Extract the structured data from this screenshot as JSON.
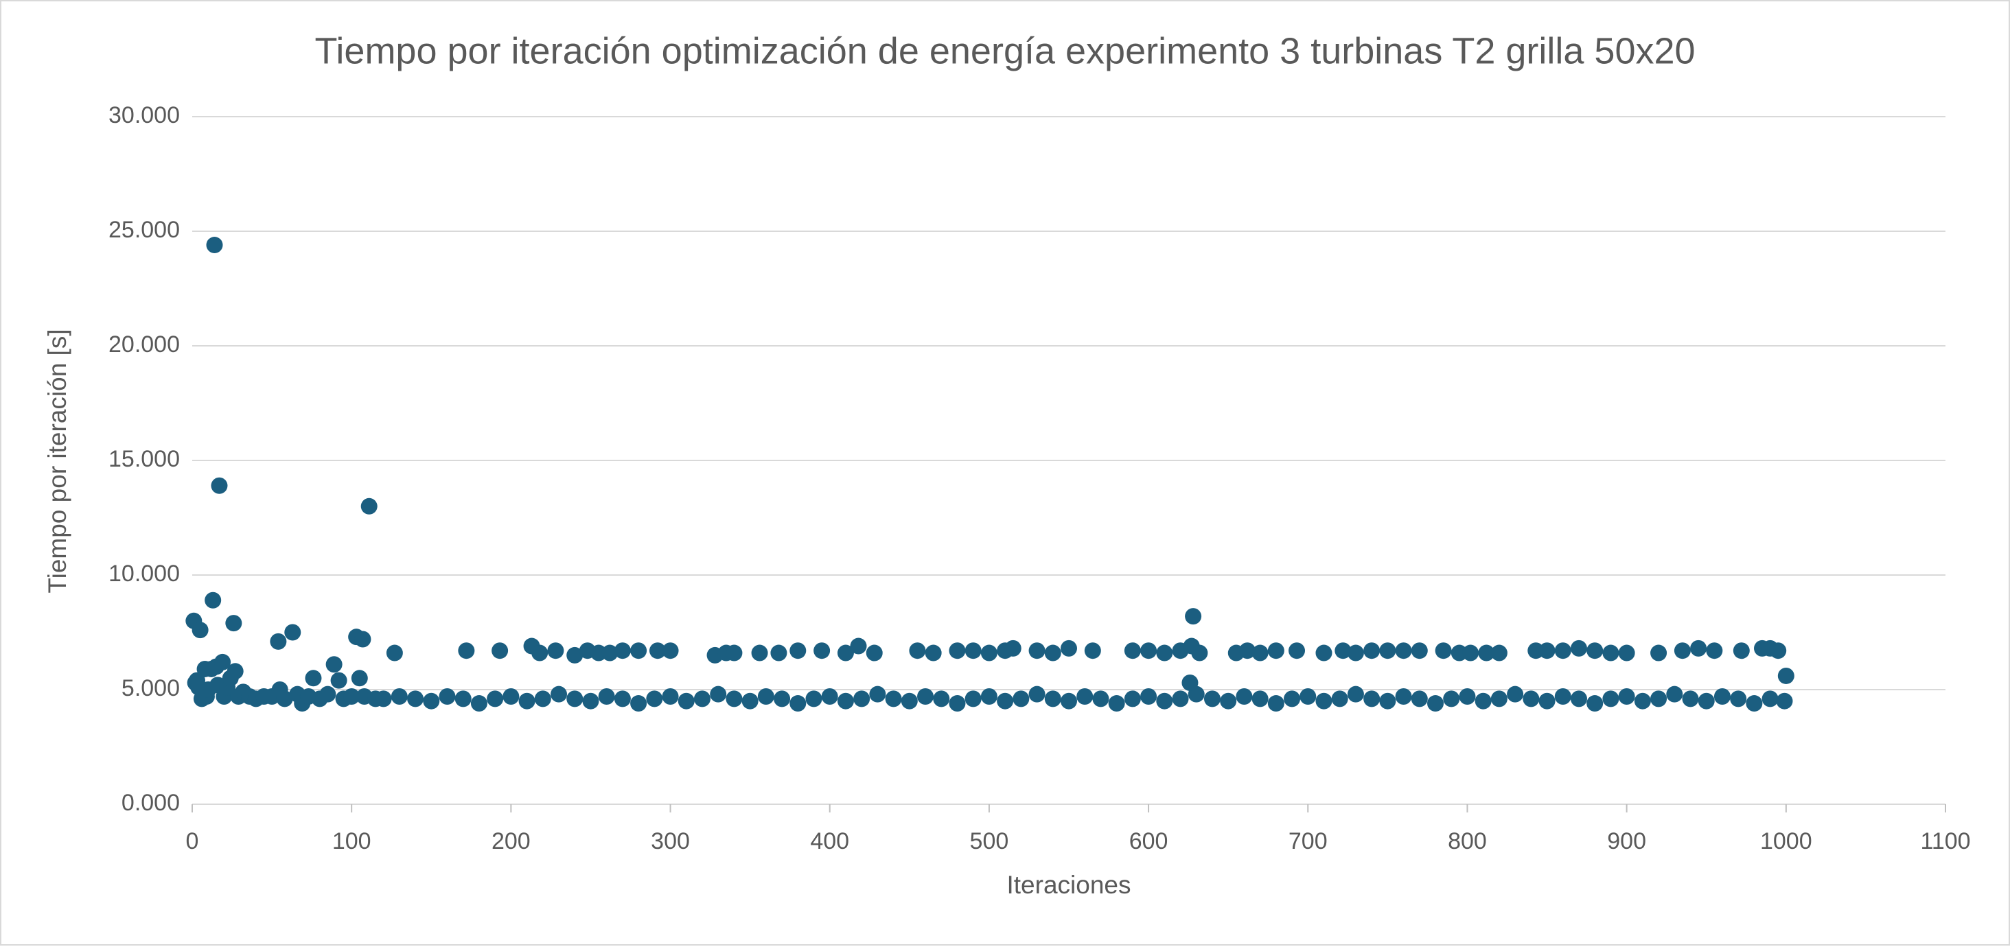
{
  "chart_data": {
    "type": "scatter",
    "title": "Tiempo por iteración optimización de energía experimento 3 turbinas T2 grilla 50x20",
    "x_label": "Iteraciones",
    "y_label": "Tiempo por iteración [s]",
    "color": "#1b5e80",
    "grid": true,
    "xlim": [
      0,
      1100
    ],
    "ylim": [
      0,
      30
    ],
    "xticks": [
      0,
      100,
      200,
      300,
      400,
      500,
      600,
      700,
      800,
      900,
      1000,
      1100
    ],
    "yticks": [
      {
        "value": 0,
        "label": "0.000"
      },
      {
        "value": 5,
        "label": "5.000"
      },
      {
        "value": 10,
        "label": "10.000"
      },
      {
        "value": 15,
        "label": "15.000"
      },
      {
        "value": 20,
        "label": "20.000"
      },
      {
        "value": 25,
        "label": "25.000"
      },
      {
        "value": 30,
        "label": "30.000"
      }
    ],
    "x": [
      1,
      2,
      3,
      4,
      5,
      6,
      8,
      9,
      10,
      12,
      13,
      14,
      15,
      16,
      17,
      19,
      20,
      22,
      24,
      26,
      27,
      29,
      32,
      36,
      40,
      45,
      50,
      54,
      55,
      58,
      63,
      66,
      69,
      73,
      76,
      80,
      85,
      89,
      92,
      95,
      100,
      103,
      105,
      107,
      108,
      111,
      115,
      120,
      127,
      130,
      140,
      150,
      160,
      170,
      180,
      190,
      200,
      210,
      220,
      230,
      240,
      250,
      260,
      270,
      280,
      290,
      300,
      310,
      320,
      330,
      340,
      350,
      360,
      370,
      380,
      390,
      400,
      410,
      420,
      430,
      440,
      450,
      460,
      470,
      480,
      490,
      500,
      510,
      520,
      530,
      540,
      550,
      560,
      570,
      580,
      590,
      600,
      610,
      620,
      630,
      640,
      650,
      660,
      670,
      680,
      690,
      700,
      710,
      720,
      730,
      740,
      750,
      760,
      770,
      780,
      790,
      800,
      810,
      820,
      830,
      840,
      850,
      860,
      870,
      880,
      890,
      900,
      910,
      920,
      930,
      940,
      950,
      960,
      970,
      980,
      990,
      172,
      193,
      213,
      218,
      228,
      240,
      248,
      255,
      262,
      270,
      280,
      292,
      300,
      328,
      335,
      340,
      356,
      368,
      380,
      395,
      410,
      418,
      428,
      455,
      465,
      480,
      490,
      500,
      510,
      515,
      530,
      540,
      550,
      565,
      590,
      600,
      610,
      620,
      627,
      628,
      632,
      655,
      662,
      670,
      680,
      693,
      710,
      722,
      730,
      740,
      750,
      760,
      770,
      785,
      795,
      802,
      812,
      820,
      843,
      850,
      860,
      870,
      880,
      890,
      900,
      920,
      935,
      945,
      955,
      972,
      985,
      990,
      995,
      626,
      999,
      1000
    ],
    "values": [
      8.0,
      5.3,
      5.4,
      5.1,
      7.6,
      4.6,
      5.9,
      4.7,
      5.0,
      5.9,
      8.9,
      24.4,
      6.0,
      5.2,
      13.9,
      6.2,
      4.7,
      5.1,
      5.5,
      7.9,
      5.8,
      4.7,
      4.9,
      4.7,
      4.6,
      4.7,
      4.7,
      7.1,
      5.0,
      4.6,
      7.5,
      4.8,
      4.4,
      4.7,
      5.5,
      4.6,
      4.8,
      6.1,
      5.4,
      4.6,
      4.7,
      7.3,
      5.5,
      7.2,
      4.7,
      13.0,
      4.6,
      4.6,
      6.6,
      4.7,
      4.6,
      4.5,
      4.7,
      4.6,
      4.4,
      4.6,
      4.7,
      4.5,
      4.6,
      4.8,
      4.6,
      4.5,
      4.7,
      4.6,
      4.4,
      4.6,
      4.7,
      4.5,
      4.6,
      4.8,
      4.6,
      4.5,
      4.7,
      4.6,
      4.4,
      4.6,
      4.7,
      4.5,
      4.6,
      4.8,
      4.6,
      4.5,
      4.7,
      4.6,
      4.4,
      4.6,
      4.7,
      4.5,
      4.6,
      4.8,
      4.6,
      4.5,
      4.7,
      4.6,
      4.4,
      4.6,
      4.7,
      4.5,
      4.6,
      4.8,
      4.6,
      4.5,
      4.7,
      4.6,
      4.4,
      4.6,
      4.7,
      4.5,
      4.6,
      4.8,
      4.6,
      4.5,
      4.7,
      4.6,
      4.4,
      4.6,
      4.7,
      4.5,
      4.6,
      4.8,
      4.6,
      4.5,
      4.7,
      4.6,
      4.4,
      4.6,
      4.7,
      4.5,
      4.6,
      4.8,
      4.6,
      4.5,
      4.7,
      4.6,
      4.4,
      4.6,
      6.7,
      6.7,
      6.9,
      6.6,
      6.7,
      6.5,
      6.7,
      6.6,
      6.6,
      6.7,
      6.7,
      6.7,
      6.7,
      6.5,
      6.6,
      6.6,
      6.6,
      6.6,
      6.7,
      6.7,
      6.6,
      6.9,
      6.6,
      6.7,
      6.6,
      6.7,
      6.7,
      6.6,
      6.7,
      6.8,
      6.7,
      6.6,
      6.8,
      6.7,
      6.7,
      6.7,
      6.6,
      6.7,
      6.9,
      8.2,
      6.6,
      6.6,
      6.7,
      6.6,
      6.7,
      6.7,
      6.6,
      6.7,
      6.6,
      6.7,
      6.7,
      6.7,
      6.7,
      6.7,
      6.6,
      6.6,
      6.6,
      6.6,
      6.7,
      6.7,
      6.7,
      6.8,
      6.7,
      6.6,
      6.6,
      6.6,
      6.7,
      6.8,
      6.7,
      6.7,
      6.8,
      6.8,
      6.7,
      5.3,
      4.5,
      5.6
    ]
  }
}
